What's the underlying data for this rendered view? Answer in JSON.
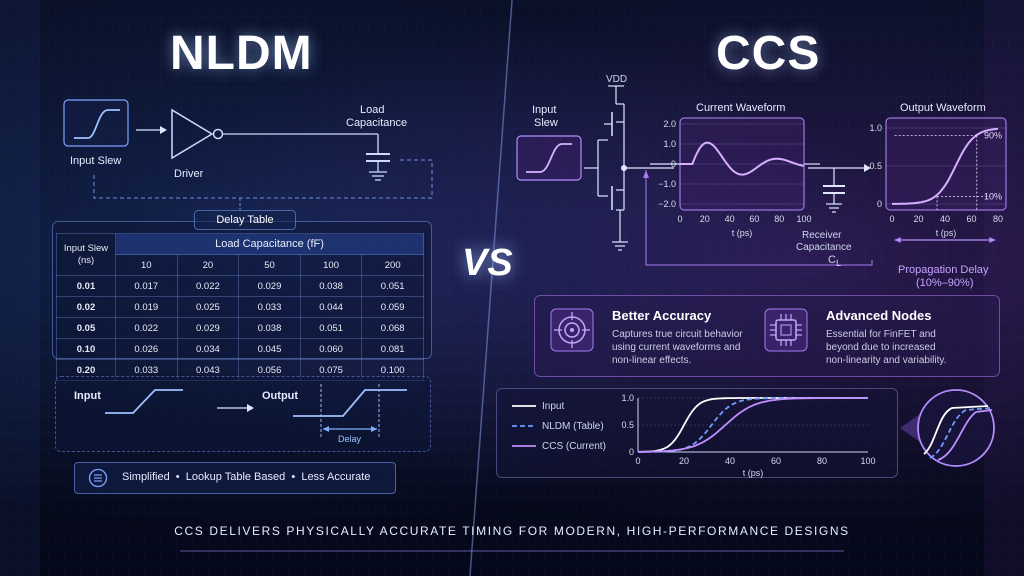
{
  "nldm": {
    "title": "NLDM",
    "input_slew": "Input Slew",
    "driver": "Driver",
    "load_cap": [
      "Load",
      "Capacitance"
    ],
    "delay_table": {
      "title": "Delay Table",
      "row_header": [
        "Input Slew",
        "(ns)"
      ],
      "col_group": "Load Capacitance (fF)",
      "cols": [
        "10",
        "20",
        "50",
        "100",
        "200"
      ],
      "rows": [
        {
          "slew": "0.01",
          "values": [
            "0.017",
            "0.022",
            "0.029",
            "0.038",
            "0.051"
          ]
        },
        {
          "slew": "0.02",
          "values": [
            "0.019",
            "0.025",
            "0.033",
            "0.044",
            "0.059"
          ]
        },
        {
          "slew": "0.05",
          "values": [
            "0.022",
            "0.029",
            "0.038",
            "0.051",
            "0.068"
          ]
        },
        {
          "slew": "0.10",
          "values": [
            "0.026",
            "0.034",
            "0.045",
            "0.060",
            "0.081"
          ]
        },
        {
          "slew": "0.20",
          "values": [
            "0.033",
            "0.043",
            "0.056",
            "0.075",
            "0.100"
          ]
        }
      ]
    },
    "io": {
      "input": "Input",
      "output": "Output",
      "delay": "Delay"
    },
    "summary": "Simplified  •  Lookup Table Based  •  Less Accurate"
  },
  "vs": "VS",
  "ccs": {
    "title": "CCS",
    "vdd": "VDD",
    "input_slew": [
      "Input",
      "Slew"
    ],
    "current_waveform": {
      "title": "Current Waveform",
      "xlabel": "t (ps)",
      "x_ticks": [
        "0",
        "20",
        "40",
        "60",
        "80",
        "100"
      ],
      "y_ticks": [
        "2.0",
        "1.0",
        "0",
        "−1.0",
        "−2.0"
      ]
    },
    "receiver": [
      "Receiver",
      "Capacitance",
      "C",
      "L"
    ],
    "output_waveform": {
      "title": "Output Waveform",
      "xlabel": "t (ps)",
      "x_ticks": [
        "0",
        "20",
        "40",
        "60",
        "80"
      ],
      "y_ticks": [
        "1.0",
        "0.5",
        "0"
      ],
      "p90": "90%",
      "p10": "10%"
    },
    "propagation": [
      "Propagation Delay",
      "(10%–90%)"
    ],
    "features": [
      {
        "title": "Better Accuracy",
        "icon": "target-icon",
        "desc": [
          "Captures true circuit behavior",
          "using current waveforms and",
          "non-linear effects."
        ]
      },
      {
        "title": "Advanced Nodes",
        "icon": "chip-icon",
        "desc": [
          "Essential for FinFET and",
          "beyond due to increased",
          "non-linearity and variability."
        ]
      }
    ],
    "comparison": {
      "legend": [
        "Input",
        "NLDM (Table)",
        "CCS (Current)"
      ],
      "xlabel": "t (ps)",
      "x_ticks": [
        "0",
        "20",
        "40",
        "60",
        "80",
        "100"
      ],
      "y_ticks": [
        "1.0",
        "0.5",
        "0"
      ]
    }
  },
  "footer": "CCS DELIVERS PHYSICALLY ACCURATE TIMING FOR MODERN, HIGH-PERFORMANCE DESIGNS",
  "colors": {
    "accent_blue": "#5b8cff",
    "accent_purple": "#b58cff",
    "bg": "#070b1c"
  }
}
